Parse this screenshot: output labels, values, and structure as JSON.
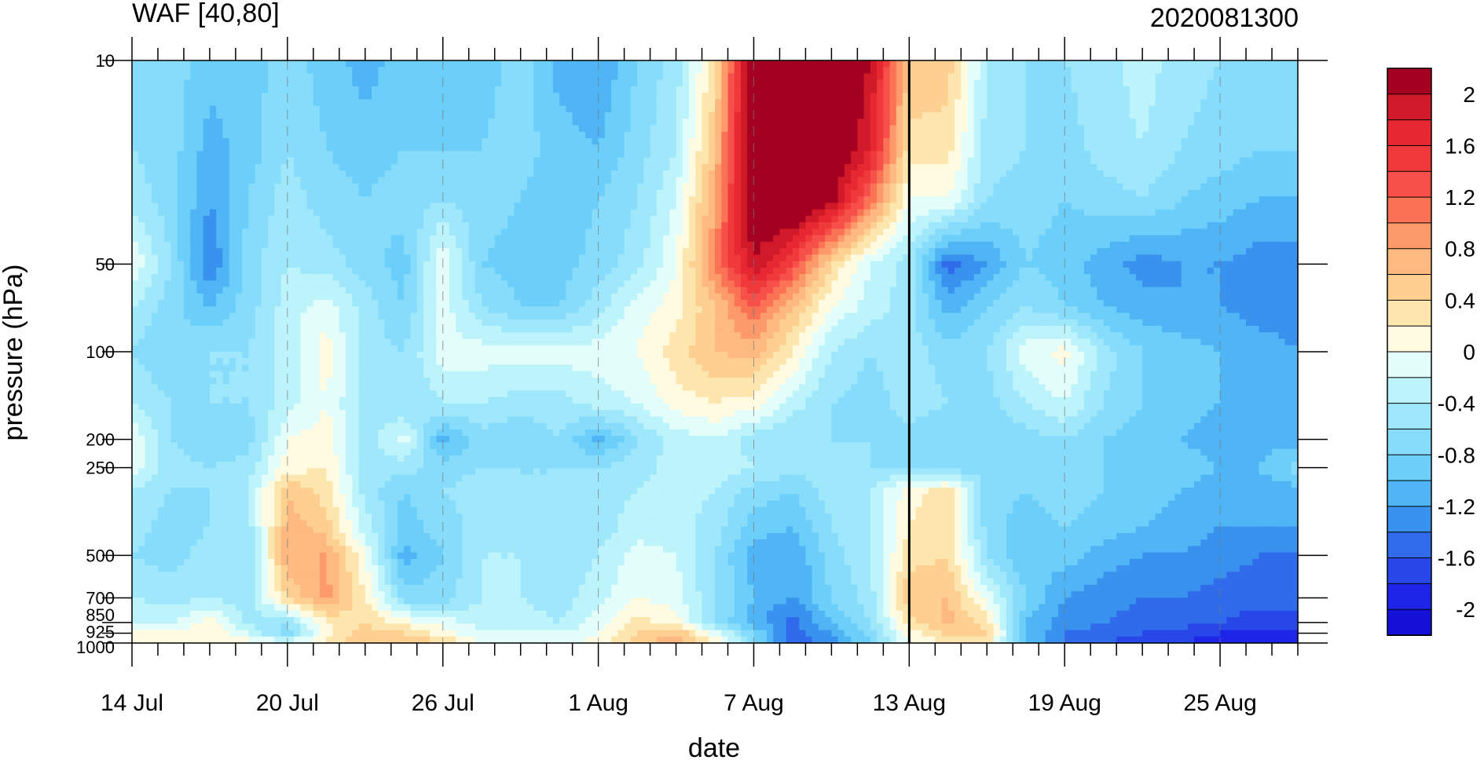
{
  "chart_data": {
    "type": "heatmap",
    "subtype": "filled-contour",
    "title_left": "WAF [40,80]",
    "title_right": "2020081300",
    "xlabel": "date",
    "ylabel": "pressure (hPa)",
    "x_tick_labels": [
      "14 Jul",
      "20 Jul",
      "26 Jul",
      "1 Aug",
      "7 Aug",
      "13 Aug",
      "19 Aug",
      "25 Aug"
    ],
    "x_range_days": [
      0,
      45
    ],
    "x_major_tick_days": [
      0,
      6,
      12,
      18,
      24,
      30,
      36,
      42
    ],
    "y_scale": "log",
    "y_reversed": true,
    "y_range": [
      1000,
      10
    ],
    "y_tick_labels": [
      "10",
      "50",
      "100",
      "200",
      "250",
      "500",
      "700",
      "850",
      "925",
      "1000"
    ],
    "y_ticks": [
      10,
      50,
      100,
      200,
      250,
      500,
      700,
      850,
      925,
      1000
    ],
    "vertical_marker_label": "13 Aug",
    "colorbar": {
      "labels": [
        "2",
        "1.6",
        "1.2",
        "0.8",
        "0.4",
        "0",
        "-0.4",
        "-0.8",
        "-1.2",
        "-1.6",
        "-2"
      ],
      "levels_top_to_bottom": [
        2.2,
        2,
        1.8,
        1.6,
        1.4,
        1.2,
        1.0,
        0.8,
        0.6,
        0.4,
        0.2,
        0,
        -0.2,
        -0.4,
        -0.6,
        -0.8,
        -1.0,
        -1.2,
        -1.4,
        -1.6,
        -1.8,
        -2.0
      ],
      "colors_top_to_bottom": [
        "#a50021",
        "#d01a29",
        "#e72832",
        "#f0393b",
        "#f7504a",
        "#fa7355",
        "#fd9a6a",
        "#fdb980",
        "#fdd092",
        "#fde6ad",
        "#fffae0",
        "#e3fdfb",
        "#bdf3fa",
        "#9fe7fb",
        "#87dcfb",
        "#6ccffa",
        "#4fb5f5",
        "#3a92ef",
        "#2f6bea",
        "#2747e8",
        "#1e25e8",
        "#1410d8"
      ]
    },
    "field": {
      "pressure_levels": [
        10,
        20,
        30,
        50,
        70,
        100,
        150,
        200,
        250,
        300,
        400,
        500,
        700,
        850,
        925,
        1000
      ],
      "days": [
        0,
        1.5,
        3,
        4.5,
        6,
        7.5,
        9,
        10.5,
        12,
        13.5,
        15,
        16.5,
        18,
        19.5,
        21,
        22.5,
        24,
        25.5,
        27,
        28.5,
        30,
        31.5,
        33,
        34.5,
        36,
        37.5,
        39,
        40.5,
        42,
        43.5,
        45
      ],
      "values": [
        [
          -0.5,
          -0.5,
          -0.7,
          -0.7,
          -0.5,
          -0.7,
          -0.9,
          -0.7,
          -0.6,
          -0.7,
          -0.5,
          -0.9,
          -1.0,
          -0.6,
          -0.3,
          0.5,
          2.6,
          2.8,
          2.6,
          2.2,
          0.8,
          0.7,
          -0.2,
          -0.4,
          -0.4,
          -0.3,
          -0.1,
          -0.3,
          -0.4,
          -0.5,
          -0.5
        ],
        [
          -0.4,
          -0.5,
          -0.9,
          -0.7,
          -0.4,
          -0.6,
          -0.7,
          -0.6,
          -0.6,
          -0.6,
          -0.5,
          -0.7,
          -0.8,
          -0.5,
          -0.2,
          0.8,
          2.6,
          2.8,
          2.6,
          2.0,
          0.5,
          0.5,
          -0.3,
          -0.4,
          -0.5,
          -0.3,
          -0.2,
          -0.4,
          -0.5,
          -0.6,
          -0.6
        ],
        [
          -0.3,
          -0.5,
          -1.0,
          -0.6,
          -0.3,
          -0.5,
          -0.6,
          -0.5,
          -0.4,
          -0.5,
          -0.6,
          -0.8,
          -0.6,
          -0.4,
          0.0,
          1.0,
          2.5,
          2.7,
          2.3,
          1.3,
          0.2,
          0.2,
          -0.4,
          -0.5,
          -0.6,
          -0.5,
          -0.4,
          -0.6,
          -0.7,
          -0.8,
          -0.8
        ],
        [
          0.2,
          -0.4,
          -1.2,
          -0.5,
          -0.2,
          -0.3,
          -0.5,
          -0.7,
          0.2,
          -0.6,
          -0.7,
          -0.7,
          -0.5,
          -0.3,
          0.2,
          1.2,
          2.2,
          1.6,
          0.6,
          0.0,
          -0.3,
          -1.3,
          -1.0,
          -0.6,
          -0.7,
          -0.9,
          -1.1,
          -1.0,
          -1.0,
          -1.1,
          -1.1
        ],
        [
          -0.2,
          -0.5,
          -0.8,
          -0.5,
          -0.1,
          0.1,
          -0.3,
          -0.6,
          0.1,
          -0.4,
          -0.6,
          -0.6,
          -0.3,
          0.1,
          0.3,
          0.8,
          1.4,
          0.8,
          0.2,
          -0.1,
          -0.3,
          -0.9,
          -0.6,
          -0.4,
          -0.6,
          -0.8,
          -0.9,
          -1.0,
          -1.0,
          -1.1,
          -1.1
        ],
        [
          -0.4,
          -0.6,
          -0.4,
          -0.4,
          -0.1,
          0.3,
          -0.3,
          -0.4,
          0.1,
          0.1,
          0.1,
          0.1,
          0.1,
          0.2,
          0.5,
          0.8,
          0.9,
          0.4,
          -0.2,
          -0.4,
          -0.3,
          -0.5,
          -0.4,
          0.1,
          0.3,
          -0.3,
          -0.6,
          -0.7,
          -0.8,
          -0.9,
          -1.0
        ],
        [
          -0.2,
          -0.4,
          -0.4,
          -0.4,
          -0.1,
          0.2,
          -0.3,
          -0.4,
          -0.2,
          -0.2,
          -0.3,
          -0.3,
          -0.1,
          0.0,
          0.3,
          0.4,
          0.3,
          -0.1,
          -0.4,
          -0.5,
          -0.3,
          -0.4,
          -0.5,
          -0.2,
          0.0,
          -0.4,
          -0.6,
          -0.7,
          -0.8,
          -0.9,
          -0.9
        ],
        [
          0.2,
          -0.4,
          -0.6,
          -0.5,
          0.2,
          0.3,
          -0.3,
          0.1,
          -0.9,
          -0.5,
          -0.6,
          -0.4,
          -0.9,
          -0.4,
          -0.1,
          0.0,
          -0.3,
          -0.4,
          -0.4,
          -0.4,
          -0.5,
          -0.6,
          -0.6,
          -0.5,
          -0.4,
          -0.6,
          -0.7,
          -0.8,
          -0.9,
          -0.9,
          -0.9
        ],
        [
          0.1,
          -0.3,
          -0.4,
          -0.3,
          0.3,
          0.4,
          -0.3,
          -0.3,
          -0.5,
          -0.4,
          -0.4,
          -0.4,
          -0.4,
          -0.3,
          -0.1,
          -0.1,
          -0.2,
          -0.3,
          -0.3,
          -0.4,
          -0.4,
          -0.5,
          -0.5,
          -0.5,
          -0.4,
          -0.6,
          -0.6,
          -0.7,
          -0.8,
          -0.8,
          -0.5
        ],
        [
          -0.2,
          -0.4,
          -0.4,
          -0.2,
          0.8,
          0.5,
          -0.3,
          -0.6,
          -0.4,
          -0.3,
          -0.4,
          -0.4,
          -0.3,
          -0.2,
          -0.1,
          -0.2,
          -0.5,
          -0.6,
          -0.3,
          -0.2,
          0.3,
          0.5,
          -0.5,
          -0.6,
          -0.5,
          -0.6,
          -0.7,
          -0.8,
          -0.9,
          -0.9,
          -0.9
        ],
        [
          -0.3,
          -0.5,
          -0.4,
          -0.3,
          0.9,
          0.7,
          -0.1,
          -0.7,
          -0.5,
          -0.3,
          -0.3,
          -0.4,
          -0.3,
          -0.1,
          -0.1,
          -0.3,
          -0.7,
          -0.8,
          -0.4,
          -0.2,
          0.4,
          0.6,
          -0.5,
          -0.7,
          -0.6,
          -0.7,
          -0.8,
          -0.9,
          -1.0,
          -1.0,
          -1.0
        ],
        [
          -0.4,
          -0.5,
          -0.3,
          -0.4,
          1.0,
          1.0,
          0.2,
          -0.9,
          -0.6,
          -0.2,
          -0.2,
          -0.3,
          -0.2,
          0.1,
          0.0,
          -0.4,
          -0.9,
          -1.0,
          -0.5,
          -0.2,
          0.5,
          0.6,
          -0.4,
          -0.8,
          -0.7,
          -0.9,
          -1.0,
          -1.0,
          -1.1,
          -1.2,
          -1.2
        ],
        [
          -0.2,
          -0.3,
          -0.2,
          -0.3,
          0.6,
          1.1,
          0.4,
          -0.5,
          -0.5,
          -0.2,
          -0.2,
          -0.3,
          -0.1,
          0.2,
          0.1,
          -0.4,
          -0.8,
          -1.0,
          -0.6,
          -0.3,
          0.8,
          0.8,
          0.1,
          -0.6,
          -1.0,
          -1.1,
          -1.2,
          -1.2,
          -1.3,
          -1.3,
          -1.3
        ],
        [
          0.0,
          0.0,
          0.3,
          -0.3,
          -0.4,
          0.4,
          0.6,
          0.3,
          0.1,
          -0.1,
          -0.1,
          -0.2,
          0.1,
          0.5,
          0.3,
          -0.4,
          -0.9,
          -1.3,
          -0.8,
          -0.4,
          0.5,
          0.9,
          0.5,
          -0.8,
          -1.1,
          -1.2,
          -1.3,
          -1.3,
          -1.4,
          -1.5,
          -1.5
        ],
        [
          0.2,
          0.2,
          0.4,
          0.0,
          -0.5,
          0.3,
          0.7,
          0.6,
          0.3,
          0.0,
          0.1,
          0.0,
          0.2,
          0.6,
          0.8,
          0.1,
          -0.6,
          -1.3,
          -1.0,
          -0.5,
          0.3,
          0.7,
          0.6,
          -0.8,
          -1.2,
          -1.3,
          -1.4,
          -1.5,
          -1.6,
          -1.7,
          -1.7
        ],
        [
          0.3,
          0.4,
          0.4,
          0.3,
          0.1,
          0.4,
          0.8,
          0.9,
          0.6,
          0.2,
          0.2,
          0.1,
          0.3,
          0.7,
          1.0,
          0.4,
          -0.5,
          -1.4,
          -1.1,
          -0.6,
          0.2,
          0.4,
          0.5,
          -0.8,
          -1.2,
          -1.4,
          -1.5,
          -1.6,
          -1.7,
          -1.8,
          -1.8
        ]
      ]
    }
  }
}
